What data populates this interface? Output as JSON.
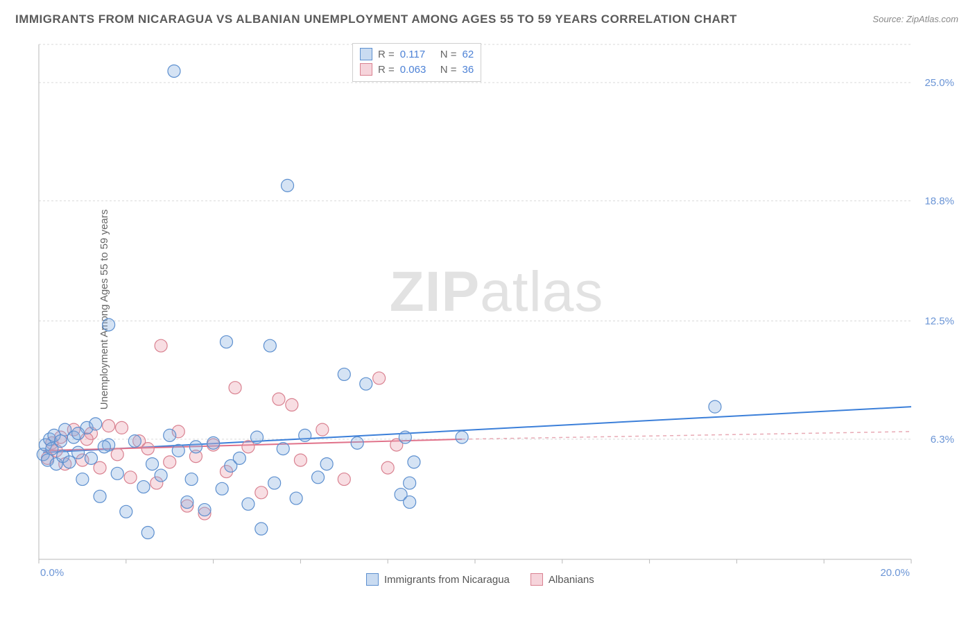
{
  "title": "IMMIGRANTS FROM NICARAGUA VS ALBANIAN UNEMPLOYMENT AMONG AGES 55 TO 59 YEARS CORRELATION CHART",
  "source_label": "Source:",
  "source_name": "ZipAtlas.com",
  "ylabel": "Unemployment Among Ages 55 to 59 years",
  "watermark_bold": "ZIP",
  "watermark_rest": "atlas",
  "chart": {
    "type": "scatter",
    "xlim": [
      0,
      20
    ],
    "ylim": [
      0,
      27
    ],
    "xtick_labels": [
      "0.0%",
      "20.0%"
    ],
    "ytick_values": [
      6.3,
      12.5,
      18.8,
      25.0
    ],
    "ytick_labels": [
      "6.3%",
      "12.5%",
      "18.8%",
      "25.0%"
    ],
    "grid_color": "#d9d9d9",
    "axis_color": "#b9b9b9",
    "background_color": "#ffffff",
    "marker_radius": 9,
    "series": [
      {
        "name": "Immigrants from Nicaragua",
        "color_fill": "rgba(136,176,224,0.35)",
        "color_stroke": "#5c8fcf",
        "r_label": "R =",
        "r_value": "0.117",
        "n_label": "N =",
        "n_value": "62",
        "trend_line": {
          "x1": 0.1,
          "y1": 5.6,
          "x2": 20.0,
          "y2": 8.0,
          "color": "#3b7fd9"
        },
        "points": [
          [
            0.1,
            5.5
          ],
          [
            0.15,
            6.0
          ],
          [
            0.2,
            5.2
          ],
          [
            0.25,
            6.3
          ],
          [
            0.3,
            5.8
          ],
          [
            0.35,
            6.5
          ],
          [
            0.4,
            5.0
          ],
          [
            0.5,
            6.2
          ],
          [
            0.55,
            5.4
          ],
          [
            0.6,
            6.8
          ],
          [
            0.7,
            5.1
          ],
          [
            0.8,
            6.4
          ],
          [
            0.9,
            5.6
          ],
          [
            1.0,
            4.2
          ],
          [
            1.1,
            6.9
          ],
          [
            1.2,
            5.3
          ],
          [
            1.3,
            7.1
          ],
          [
            1.4,
            3.3
          ],
          [
            1.6,
            6.0
          ],
          [
            1.6,
            12.3
          ],
          [
            1.8,
            4.5
          ],
          [
            2.0,
            2.5
          ],
          [
            2.2,
            6.2
          ],
          [
            2.4,
            3.8
          ],
          [
            2.5,
            1.4
          ],
          [
            2.6,
            5.0
          ],
          [
            2.8,
            4.4
          ],
          [
            3.0,
            6.5
          ],
          [
            3.1,
            25.6
          ],
          [
            3.2,
            5.7
          ],
          [
            3.4,
            3.0
          ],
          [
            3.5,
            4.2
          ],
          [
            3.6,
            5.9
          ],
          [
            3.8,
            2.6
          ],
          [
            4.0,
            6.1
          ],
          [
            4.2,
            3.7
          ],
          [
            4.3,
            11.4
          ],
          [
            4.4,
            4.9
          ],
          [
            4.6,
            5.3
          ],
          [
            4.8,
            2.9
          ],
          [
            5.0,
            6.4
          ],
          [
            5.1,
            1.6
          ],
          [
            5.3,
            11.2
          ],
          [
            5.4,
            4.0
          ],
          [
            5.6,
            5.8
          ],
          [
            5.7,
            19.6
          ],
          [
            5.9,
            3.2
          ],
          [
            6.1,
            6.5
          ],
          [
            6.4,
            4.3
          ],
          [
            6.6,
            5.0
          ],
          [
            7.0,
            9.7
          ],
          [
            7.3,
            6.1
          ],
          [
            7.5,
            9.2
          ],
          [
            8.3,
            3.4
          ],
          [
            8.4,
            6.4
          ],
          [
            8.5,
            4.0
          ],
          [
            8.5,
            3.0
          ],
          [
            8.6,
            5.1
          ],
          [
            9.7,
            6.4
          ],
          [
            15.5,
            8.0
          ],
          [
            1.5,
            5.9
          ],
          [
            0.9,
            6.6
          ]
        ]
      },
      {
        "name": "Albanians",
        "color_fill": "rgba(235,160,175,0.35)",
        "color_stroke": "#d98190",
        "r_label": "R =",
        "r_value": "0.063",
        "n_label": "N =",
        "n_value": "36",
        "trend_line_solid": {
          "x1": 0.1,
          "y1": 5.7,
          "x2": 9.7,
          "y2": 6.3,
          "color": "#e07189"
        },
        "trend_line_dashed": {
          "x1": 9.7,
          "y1": 6.3,
          "x2": 20.0,
          "y2": 6.7,
          "color": "#e8a9b4"
        },
        "points": [
          [
            0.2,
            5.3
          ],
          [
            0.3,
            6.1
          ],
          [
            0.4,
            5.7
          ],
          [
            0.5,
            6.4
          ],
          [
            0.6,
            5.0
          ],
          [
            0.8,
            6.8
          ],
          [
            1.0,
            5.2
          ],
          [
            1.2,
            6.6
          ],
          [
            1.4,
            4.8
          ],
          [
            1.6,
            7.0
          ],
          [
            1.8,
            5.5
          ],
          [
            1.9,
            6.9
          ],
          [
            2.1,
            4.3
          ],
          [
            2.3,
            6.2
          ],
          [
            2.5,
            5.8
          ],
          [
            2.7,
            4.0
          ],
          [
            2.8,
            11.2
          ],
          [
            3.0,
            5.1
          ],
          [
            3.2,
            6.7
          ],
          [
            3.4,
            2.8
          ],
          [
            3.6,
            5.4
          ],
          [
            3.8,
            2.4
          ],
          [
            4.0,
            6.0
          ],
          [
            4.3,
            4.6
          ],
          [
            4.5,
            9.0
          ],
          [
            4.8,
            5.9
          ],
          [
            5.1,
            3.5
          ],
          [
            5.5,
            8.4
          ],
          [
            5.8,
            8.1
          ],
          [
            6.0,
            5.2
          ],
          [
            6.5,
            6.8
          ],
          [
            7.0,
            4.2
          ],
          [
            7.8,
            9.5
          ],
          [
            8.0,
            4.8
          ],
          [
            8.2,
            6.0
          ],
          [
            1.1,
            6.3
          ]
        ]
      }
    ]
  },
  "legend_bottom": {
    "series1_label": "Immigrants from Nicaragua",
    "series2_label": "Albanians"
  }
}
